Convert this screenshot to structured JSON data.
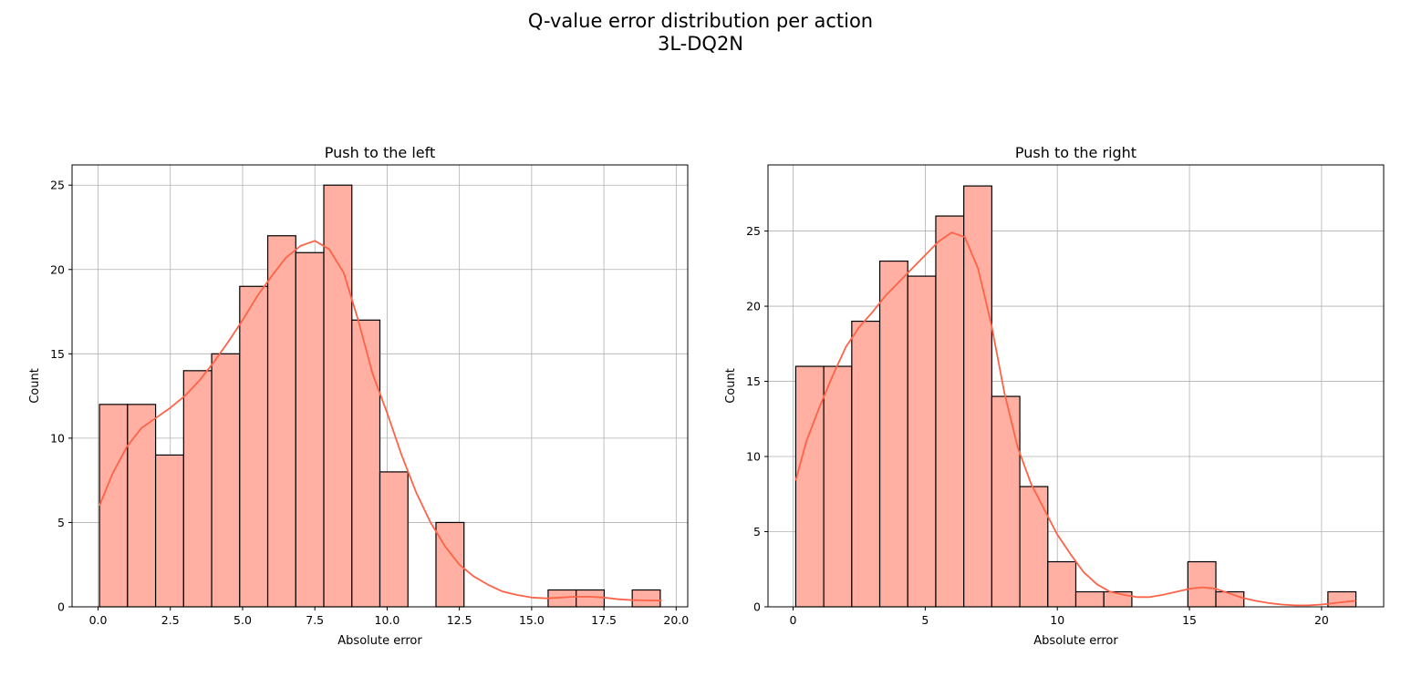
{
  "figure": {
    "title_line1": "Q-value error distribution per action",
    "title_line2": "3L-DQ2N"
  },
  "colors": {
    "bar_fill": "#ffb0a2",
    "bar_edge": "#000000",
    "kde_line": "#ff6347",
    "grid": "#b0b0b0"
  },
  "chart_data": [
    {
      "type": "bar",
      "subtype": "histogram_with_kde",
      "title": "Push to the left",
      "xlabel": "Absolute error",
      "ylabel": "Count",
      "xlim": [
        -0.9,
        20.4
      ],
      "ylim": [
        0,
        26.2
      ],
      "xticks": [
        0,
        2.5,
        5,
        7.5,
        10,
        12.5,
        15,
        17.5,
        20
      ],
      "xtick_labels": [
        "0.0",
        "2.5",
        "5.0",
        "7.5",
        "10.0",
        "12.5",
        "15.0",
        "17.5",
        "20.0"
      ],
      "yticks": [
        0,
        5,
        10,
        15,
        20,
        25
      ],
      "ytick_labels": [
        "0",
        "5",
        "10",
        "15",
        "20",
        "25"
      ],
      "grid": true,
      "bin_edges": [
        0.05,
        1.02,
        1.99,
        2.96,
        3.93,
        4.9,
        5.87,
        6.84,
        7.81,
        8.78,
        9.75,
        10.72,
        11.69,
        12.66,
        13.63,
        14.6,
        15.57,
        16.54,
        17.51,
        18.48,
        19.45
      ],
      "counts": [
        12,
        12,
        9,
        14,
        15,
        19,
        22,
        21,
        25,
        17,
        8,
        0,
        5,
        0,
        0,
        0,
        1,
        1,
        0,
        1
      ],
      "kde": {
        "x": [
          0.05,
          0.5,
          1.0,
          1.5,
          2.0,
          2.5,
          3.0,
          3.5,
          4.0,
          4.5,
          5.0,
          5.5,
          6.0,
          6.5,
          7.0,
          7.5,
          8.0,
          8.5,
          9.0,
          9.5,
          10.0,
          10.5,
          11.0,
          11.5,
          12.0,
          12.5,
          13.0,
          13.5,
          14.0,
          14.5,
          15.0,
          15.5,
          16.0,
          16.5,
          17.0,
          17.5,
          18.0,
          18.5,
          19.0,
          19.5
        ],
        "y": [
          6.0,
          7.9,
          9.5,
          10.6,
          11.2,
          11.8,
          12.5,
          13.4,
          14.5,
          15.7,
          17.0,
          18.4,
          19.6,
          20.7,
          21.4,
          21.7,
          21.2,
          19.8,
          17.0,
          13.8,
          11.5,
          9.0,
          6.8,
          5.0,
          3.6,
          2.5,
          1.8,
          1.3,
          0.9,
          0.7,
          0.55,
          0.5,
          0.55,
          0.6,
          0.6,
          0.55,
          0.45,
          0.4,
          0.38,
          0.37
        ]
      }
    },
    {
      "type": "bar",
      "subtype": "histogram_with_kde",
      "title": "Push to the right",
      "xlabel": "Absolute error",
      "ylabel": "Count",
      "xlim": [
        -0.95,
        22.35
      ],
      "ylim": [
        0,
        29.4
      ],
      "xticks": [
        0,
        5,
        10,
        15,
        20
      ],
      "xtick_labels": [
        "0",
        "5",
        "10",
        "15",
        "20"
      ],
      "yticks": [
        0,
        5,
        10,
        15,
        20,
        25
      ],
      "ytick_labels": [
        "0",
        "5",
        "10",
        "15",
        "20",
        "25"
      ],
      "grid": true,
      "bin_edges": [
        0.1,
        1.16,
        2.22,
        3.28,
        4.34,
        5.4,
        6.46,
        7.52,
        8.58,
        9.64,
        10.7,
        11.76,
        12.82,
        13.88,
        14.94,
        16.0,
        17.06,
        18.12,
        19.18,
        20.24,
        21.3
      ],
      "counts": [
        16,
        16,
        19,
        23,
        22,
        26,
        28,
        14,
        8,
        3,
        1,
        1,
        0,
        0,
        3,
        1,
        0,
        0,
        0,
        1
      ],
      "kde": {
        "x": [
          0.1,
          0.5,
          1.0,
          1.5,
          2.0,
          2.5,
          3.0,
          3.5,
          4.0,
          4.5,
          5.0,
          5.5,
          6.0,
          6.5,
          7.0,
          7.5,
          8.0,
          8.5,
          9.0,
          9.5,
          10.0,
          10.5,
          11.0,
          11.5,
          12.0,
          12.5,
          13.0,
          13.5,
          14.0,
          14.5,
          15.0,
          15.5,
          16.0,
          16.5,
          17.0,
          17.5,
          18.0,
          18.5,
          19.0,
          19.5,
          20.0,
          20.5,
          21.0,
          21.3
        ],
        "y": [
          8.4,
          11.0,
          13.3,
          15.4,
          17.3,
          18.6,
          19.6,
          20.7,
          21.6,
          22.5,
          23.4,
          24.3,
          24.9,
          24.6,
          22.5,
          18.8,
          14.2,
          10.6,
          8.2,
          6.5,
          4.8,
          3.5,
          2.3,
          1.5,
          1.0,
          0.8,
          0.65,
          0.65,
          0.8,
          1.0,
          1.2,
          1.3,
          1.2,
          0.9,
          0.6,
          0.4,
          0.25,
          0.15,
          0.1,
          0.1,
          0.15,
          0.25,
          0.35,
          0.4
        ]
      }
    }
  ]
}
